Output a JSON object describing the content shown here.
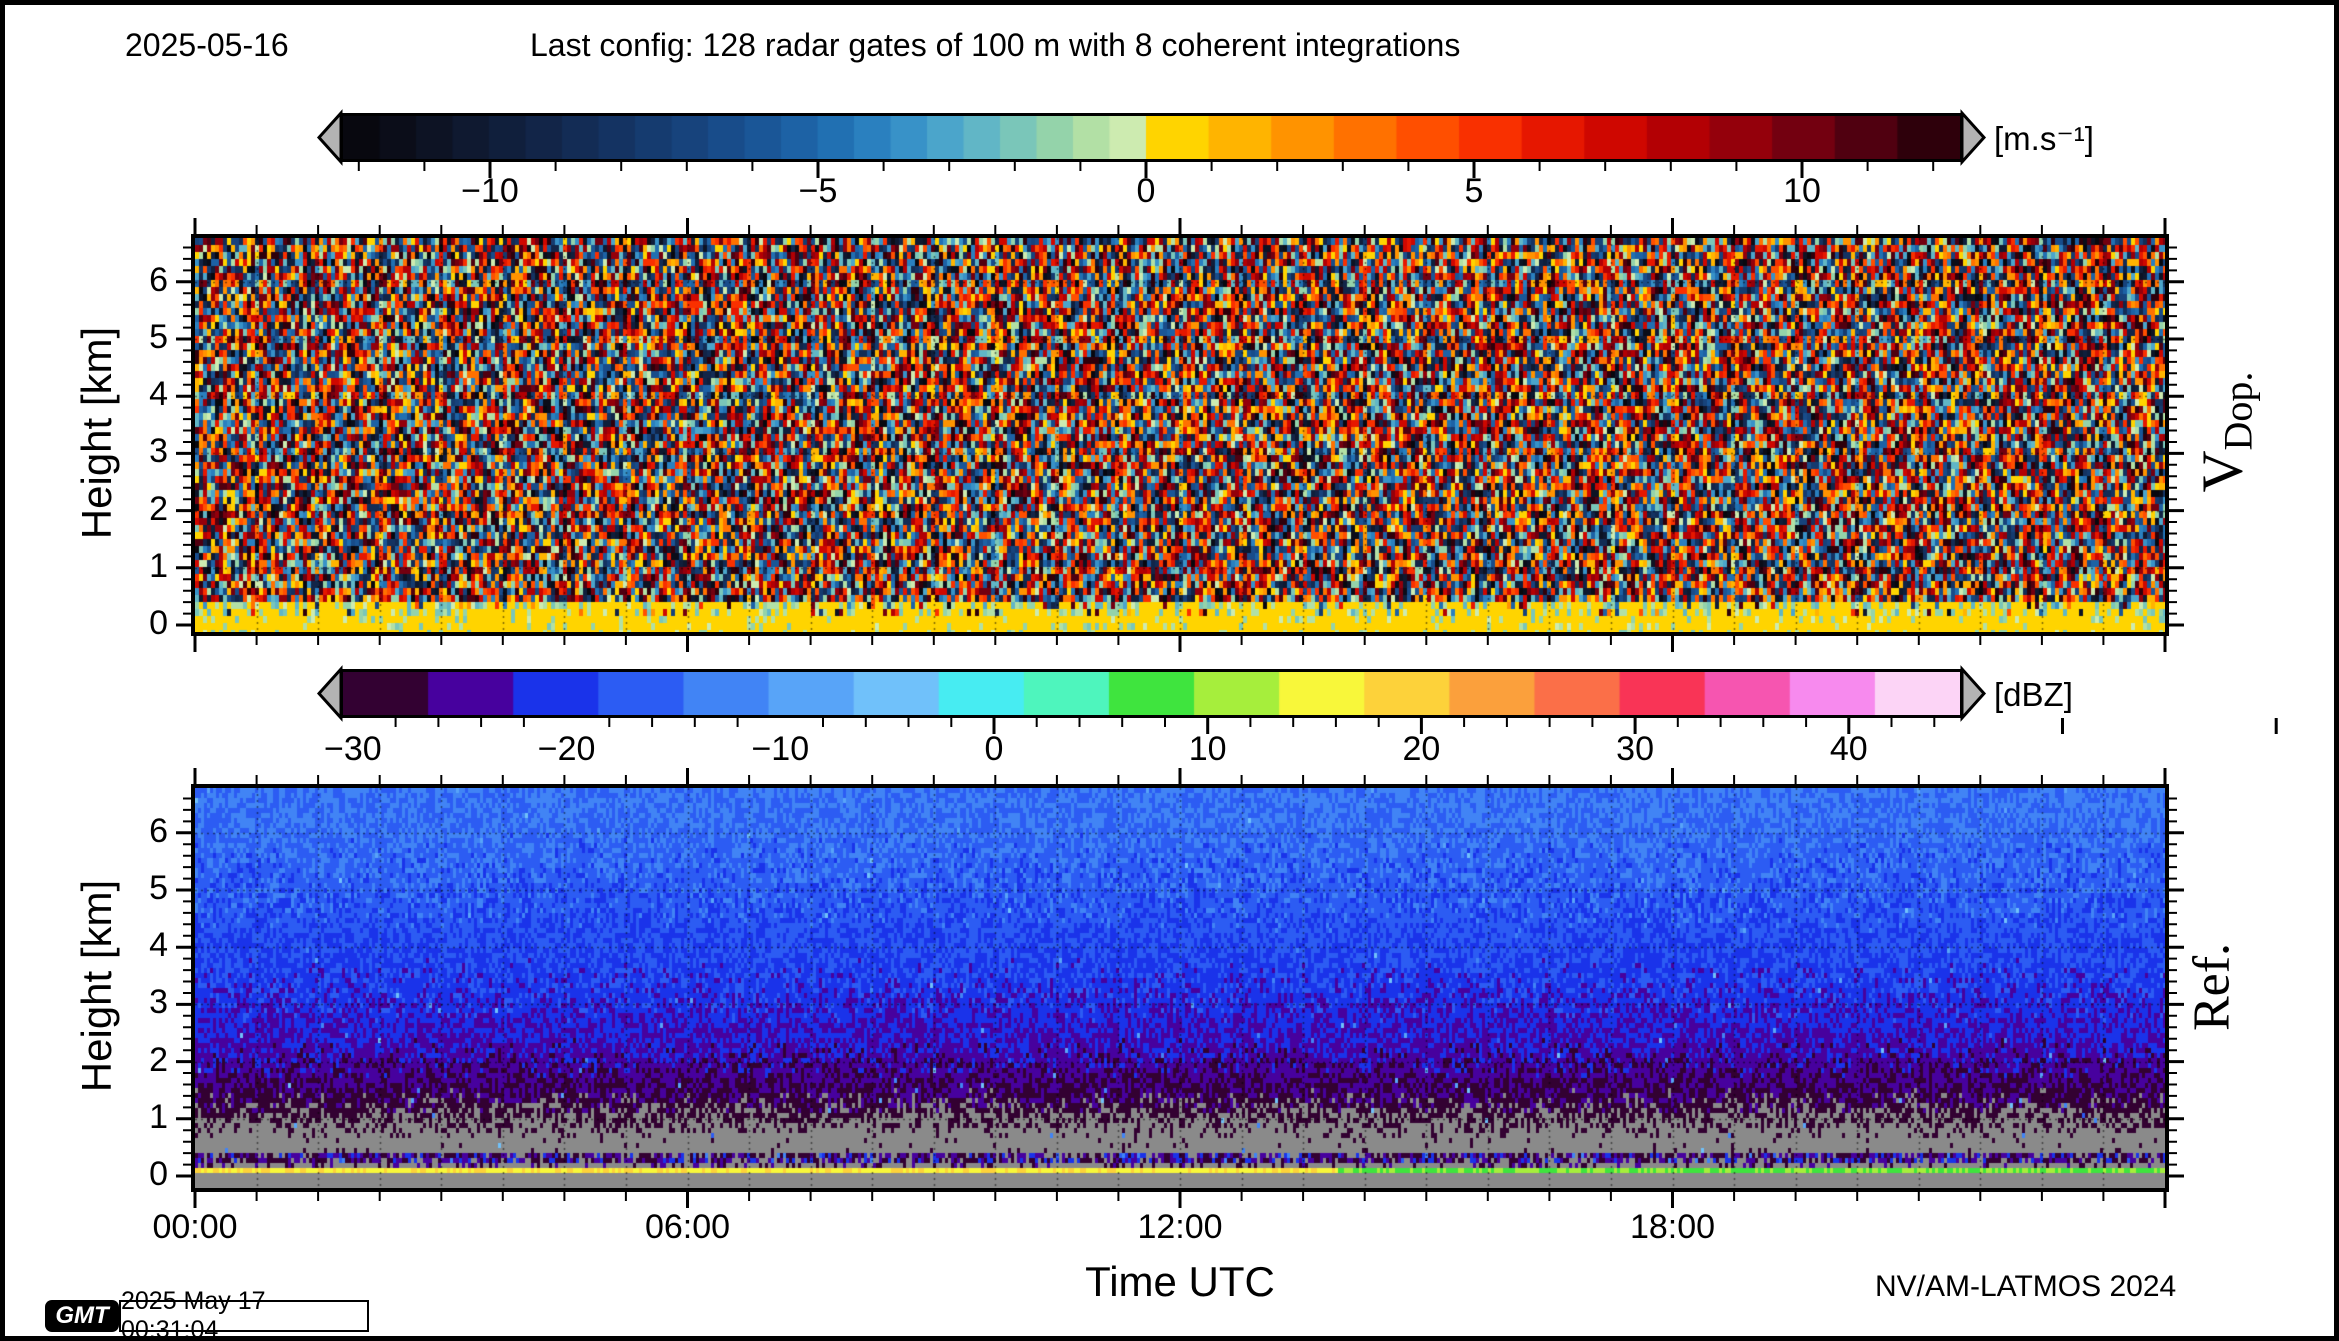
{
  "header": {
    "date": "2025-05-16",
    "config": "Last config: 128 radar gates of 100 m with 8 coherent integrations"
  },
  "xaxis": {
    "title": "Time UTC",
    "tick_labels": [
      {
        "label": "00:00",
        "hour": 0
      },
      {
        "label": "06:00",
        "hour": 6
      },
      {
        "label": "12:00",
        "hour": 12
      },
      {
        "label": "18:00",
        "hour": 18
      }
    ],
    "total_hours": 24,
    "minor_tick_minutes": 45
  },
  "footer": {
    "credit": "NV/AM-LATMOS 2024",
    "gmt_label": "GMT",
    "timestamp": "2025 May 17 00:31:04"
  },
  "chart_data": [
    {
      "type": "heatmap",
      "id": "doppler-velocity",
      "right_label": "V",
      "right_label_subscript": "Dop.",
      "ylabel": "Height [km]",
      "yticks": [
        "0",
        "1",
        "2",
        "3",
        "4",
        "5",
        "6"
      ],
      "y_range_km": [
        0,
        6.8
      ],
      "x_range_utc": [
        "00:00",
        "24:00"
      ],
      "description": "Uniform random Doppler-velocity noise speckle over the whole day and height range; near-zero velocities (yellow band with teal speckles) below about 0.4 km",
      "colorbar": {
        "unit": "[m.s⁻¹]",
        "tick_labels": [
          "−10",
          "−5",
          "0",
          "5",
          "10"
        ],
        "tick_values": [
          -10,
          -5,
          0,
          5,
          10
        ],
        "minor_step": 1,
        "range": [
          -12.2,
          12.4
        ],
        "arrow_fill": "#b3b3b3",
        "colors_negative": [
          "#08080f",
          "#0b0d19",
          "#0d1324",
          "#0f1930",
          "#101f3c",
          "#122548",
          "#132c55",
          "#143362",
          "#153b6f",
          "#17437c",
          "#184c8a",
          "#1a5697",
          "#1d62a5",
          "#2170b2",
          "#2a80bf",
          "#3892c8",
          "#4ba5cb",
          "#61b6c6",
          "#7ac6b9",
          "#94d3aa",
          "#b2e0a5",
          "#cdebb0"
        ],
        "colors_positive": [
          "#ffd400",
          "#ffb400",
          "#ff9300",
          "#ff7100",
          "#ff4f00",
          "#f93000",
          "#e61700",
          "#cf0700",
          "#b30004",
          "#94000b",
          "#730010",
          "#500010",
          "#2e000b"
        ]
      }
    },
    {
      "type": "heatmap",
      "id": "reflectivity",
      "right_label": "Ref.",
      "ylabel": "Height [km]",
      "yticks": [
        "0",
        "1",
        "2",
        "3",
        "4",
        "5",
        "6"
      ],
      "y_range_km": [
        0,
        6.8
      ],
      "x_range_utc": [
        "00:00",
        "24:00"
      ],
      "description": "Range-dependent noise floor: light blue (≈ −14 dBZ) at 6.8 km darkening to ≈ −30 dBZ near 1 km; below-threshold grey under ~1 km; dense purple-blue echo band near 0.25 km; yellow (left) to green (right) surface-clutter line near 0.1 km",
      "colorbar": {
        "unit": "[dBZ]",
        "tick_labels": [
          "−30",
          "−20",
          "−10",
          "0",
          "10",
          "20",
          "30",
          "40"
        ],
        "tick_values": [
          -30,
          -20,
          -10,
          0,
          10,
          20,
          30,
          40
        ],
        "minor_step": 2,
        "range": [
          -30.4,
          45.2
        ],
        "arrow_fill": "#b3b3b3",
        "below_range_color": "#8a8a8a",
        "colors": [
          "#330132",
          "#47019e",
          "#1a33ea",
          "#2c5cf3",
          "#4184f5",
          "#58a4f8",
          "#70c1fa",
          "#47ecf2",
          "#4ef5bd",
          "#3fe43e",
          "#a6ee3c",
          "#f8f73a",
          "#fdd23a",
          "#fba03c",
          "#fb6f48",
          "#f93456",
          "#f655b0",
          "#f78aee",
          "#fcd4f6"
        ]
      }
    }
  ]
}
